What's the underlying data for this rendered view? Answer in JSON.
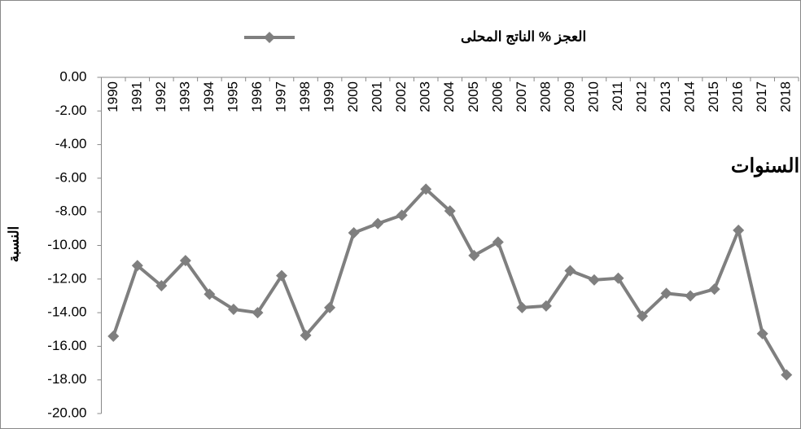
{
  "chart_data": {
    "type": "line",
    "x_label": "السنوات",
    "y_label": "النسبة",
    "categories": [
      "1990",
      "1991",
      "1992",
      "1993",
      "1994",
      "1995",
      "1996",
      "1997",
      "1998",
      "1999",
      "2000",
      "2001",
      "2002",
      "2003",
      "2004",
      "2005",
      "2006",
      "2007",
      "2008",
      "2009",
      "2010",
      "2011",
      "2012",
      "2013",
      "2014",
      "2015",
      "2016",
      "2017",
      "2018"
    ],
    "series": [
      {
        "name": "العجز % الناتج المحلى",
        "color": "#7f7f7f",
        "values": [
          -15.4,
          -11.2,
          -12.4,
          -10.9,
          -12.9,
          -13.8,
          -14.0,
          -11.8,
          -15.35,
          -13.7,
          -9.25,
          -8.7,
          -8.2,
          -6.65,
          -7.95,
          -10.6,
          -9.8,
          -13.7,
          -13.6,
          -11.5,
          -12.05,
          -11.95,
          -14.2,
          -12.85,
          -13.0,
          -12.6,
          -9.1,
          -15.25,
          -17.7
        ]
      }
    ],
    "ylim": [
      -20,
      0
    ],
    "yticks": [
      {
        "value": 0,
        "label": "0.00"
      },
      {
        "value": -2,
        "label": "-2.00"
      },
      {
        "value": -4,
        "label": "-4.00"
      },
      {
        "value": -6,
        "label": "-6.00"
      },
      {
        "value": -8,
        "label": "-8.00"
      },
      {
        "value": -10,
        "label": "-10.00"
      },
      {
        "value": -12,
        "label": "-12.00"
      },
      {
        "value": -14,
        "label": "-14.00"
      },
      {
        "value": -16,
        "label": "-16.00"
      },
      {
        "value": -18,
        "label": "-18.00"
      },
      {
        "value": -20,
        "label": "-20.00"
      }
    ],
    "grid": false,
    "legend": "top"
  }
}
